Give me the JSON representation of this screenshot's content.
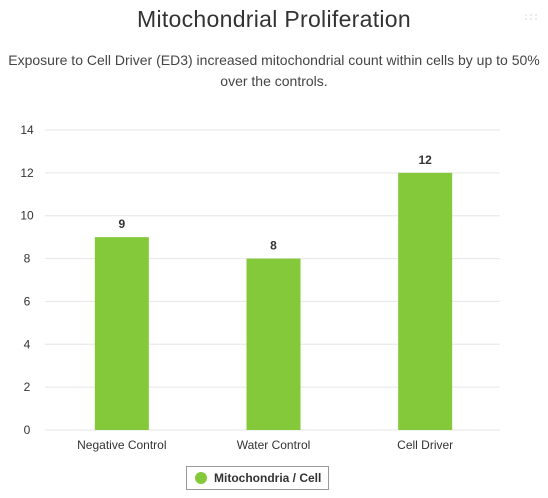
{
  "chart_data": {
    "type": "bar",
    "title": "Mitochondrial Proliferation",
    "subtitle_lines": [
      "Exposure to Cell Driver (ED3) increased mitochondrial count within cells by up to 50%",
      "over the controls."
    ],
    "categories": [
      "Negative Control",
      "Water Control",
      "Cell Driver"
    ],
    "series": [
      {
        "name": "Mitochondria / Cell",
        "values": [
          9,
          8,
          12
        ],
        "color": "#84c93a"
      }
    ],
    "data_labels": [
      "9",
      "8",
      "12"
    ],
    "ylim": [
      0,
      14
    ],
    "yticks": [
      "0",
      "2",
      "4",
      "6",
      "8",
      "10",
      "12",
      "14"
    ],
    "grid": true,
    "legend": "bottom-center"
  },
  "colors": {
    "bar": "#84c93a",
    "grid": "#e6e6e6",
    "text": "#333333"
  }
}
